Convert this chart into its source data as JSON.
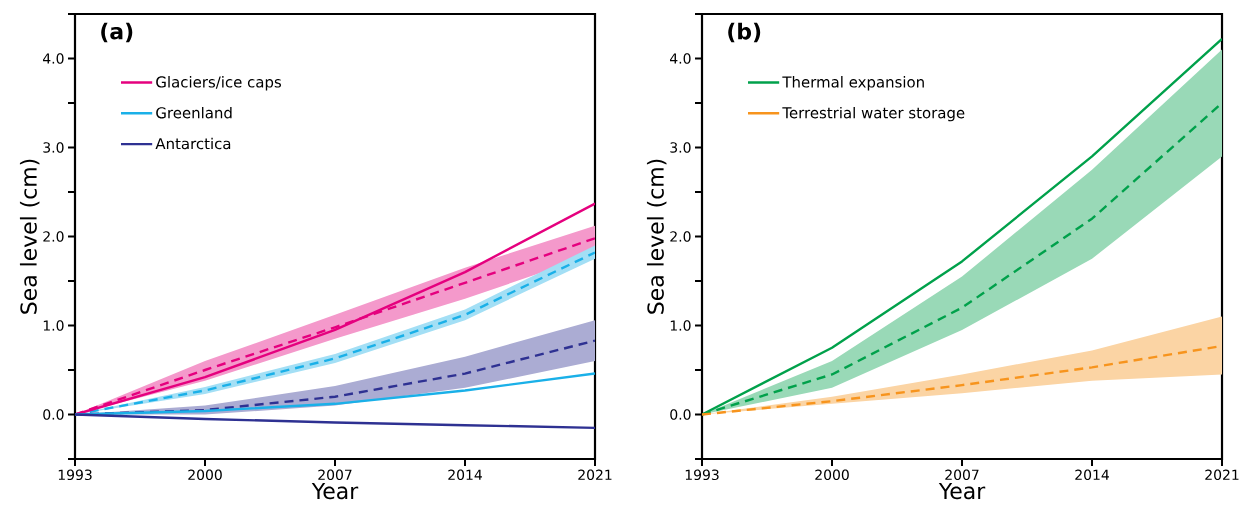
{
  "chart_data": [
    {
      "type": "line",
      "title": "(a)",
      "xlabel": "Year",
      "ylabel": "Sea level (cm)",
      "legend": "top left",
      "grid": false,
      "x": [
        1993,
        2000,
        2007,
        2014,
        2021
      ],
      "xlim": [
        1993,
        2021
      ],
      "xticks": [
        1993,
        2000,
        2007,
        2014,
        2021
      ],
      "ylim": [
        -0.5,
        4.5
      ],
      "yticks": [
        {
          "value": -0.5,
          "label": null
        },
        {
          "value": 0,
          "label": "0.0"
        },
        {
          "value": 0.5,
          "label": null
        },
        {
          "value": 1,
          "label": "1.0"
        },
        {
          "value": 1.5,
          "label": null
        },
        {
          "value": 2,
          "label": "2.0"
        },
        {
          "value": 2.5,
          "label": null
        },
        {
          "value": 3,
          "label": "3.0"
        },
        {
          "value": 3.5,
          "label": null
        },
        {
          "value": 4,
          "label": "4.0"
        },
        {
          "value": 4.5,
          "label": null
        }
      ],
      "series": [
        {
          "color": "#e5007e",
          "values": [
            0,
            0.5,
            0.98,
            1.48,
            1.98
          ],
          "line_style": "dashed",
          "lower": [
            0,
            0.38,
            0.85,
            1.3,
            1.8
          ],
          "upper": [
            0,
            0.6,
            1.12,
            1.65,
            2.12
          ]
        },
        {
          "color": "#1ab0e8",
          "values": [
            0,
            0.27,
            0.63,
            1.12,
            1.82
          ],
          "line_style": "dashed",
          "lower": [
            0,
            0.23,
            0.58,
            1.06,
            1.75
          ],
          "upper": [
            0,
            0.31,
            0.68,
            1.18,
            1.9
          ]
        },
        {
          "color": "#2e3192",
          "values": [
            0,
            0.05,
            0.2,
            0.46,
            0.83
          ],
          "line_style": "dashed",
          "lower": [
            0,
            0.0,
            0.1,
            0.3,
            0.6
          ],
          "upper": [
            0,
            0.1,
            0.32,
            0.65,
            1.06
          ]
        },
        {
          "name": "Glaciers/ice caps",
          "color": "#e5007e",
          "values": [
            0,
            0.42,
            0.95,
            1.6,
            2.37
          ],
          "line_style": "solid"
        },
        {
          "name": "Greenland",
          "color": "#1ab0e8",
          "values": [
            0,
            0.04,
            0.12,
            0.27,
            0.46
          ],
          "line_style": "solid"
        },
        {
          "name": "Antarctica",
          "color": "#2e3192",
          "values": [
            0,
            -0.05,
            -0.09,
            -0.12,
            -0.15
          ],
          "line_style": "solid"
        }
      ]
    },
    {
      "type": "line",
      "title": "(b)",
      "xlabel": "Year",
      "ylabel": "Sea level (cm)",
      "legend": "top left",
      "grid": false,
      "x": [
        1993,
        2000,
        2007,
        2014,
        2021
      ],
      "xlim": [
        1993,
        2021
      ],
      "xticks": [
        1993,
        2000,
        2007,
        2014,
        2021
      ],
      "ylim": [
        -0.5,
        4.5
      ],
      "yticks": [
        {
          "value": -0.5,
          "label": null
        },
        {
          "value": 0,
          "label": "0.0"
        },
        {
          "value": 0.5,
          "label": null
        },
        {
          "value": 1,
          "label": "1.0"
        },
        {
          "value": 1.5,
          "label": null
        },
        {
          "value": 2,
          "label": "2.0"
        },
        {
          "value": 2.5,
          "label": null
        },
        {
          "value": 3,
          "label": "3.0"
        },
        {
          "value": 3.5,
          "label": null
        },
        {
          "value": 4,
          "label": "4.0"
        },
        {
          "value": 4.5,
          "label": null
        }
      ],
      "series": [
        {
          "name": "Thermal expansion",
          "color": "#00a14b",
          "values": [
            0,
            0.75,
            1.72,
            2.9,
            4.22
          ],
          "line_style": "solid"
        },
        {
          "color": "#00a14b",
          "values": [
            0,
            0.45,
            1.2,
            2.2,
            3.5
          ],
          "line_style": "dashed",
          "lower": [
            0,
            0.3,
            0.95,
            1.75,
            2.9
          ],
          "upper": [
            0,
            0.6,
            1.55,
            2.75,
            4.1
          ]
        },
        {
          "name": "Terrestrial water storage",
          "color": "#f7941d",
          "values": [
            0,
            0.15,
            0.33,
            0.53,
            0.77
          ],
          "line_style": "dashed",
          "lower": [
            0,
            0.12,
            0.24,
            0.38,
            0.45
          ],
          "upper": [
            0,
            0.2,
            0.45,
            0.72,
            1.1
          ]
        }
      ]
    }
  ]
}
